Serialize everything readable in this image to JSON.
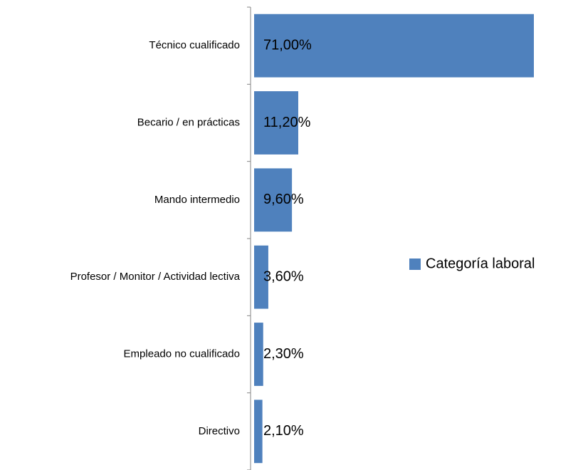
{
  "chart_data": {
    "type": "bar",
    "orientation": "horizontal",
    "categories": [
      "Técnico cualificado",
      "Becario / en prácticas",
      "Mando intermedio",
      "Profesor / Monitor / Actividad lectiva",
      "Empleado no cualificado",
      "Directivo"
    ],
    "series": [
      {
        "name": "Categoría laboral",
        "color": "#4f81bd",
        "values": [
          71,
          11.2,
          9.6,
          3.6,
          2.3,
          2.1
        ],
        "value_labels": [
          "71,00%",
          "11,20%",
          "9,60%",
          "3,60%",
          "2,30%",
          "2,10%"
        ]
      }
    ],
    "legend": "right"
  }
}
